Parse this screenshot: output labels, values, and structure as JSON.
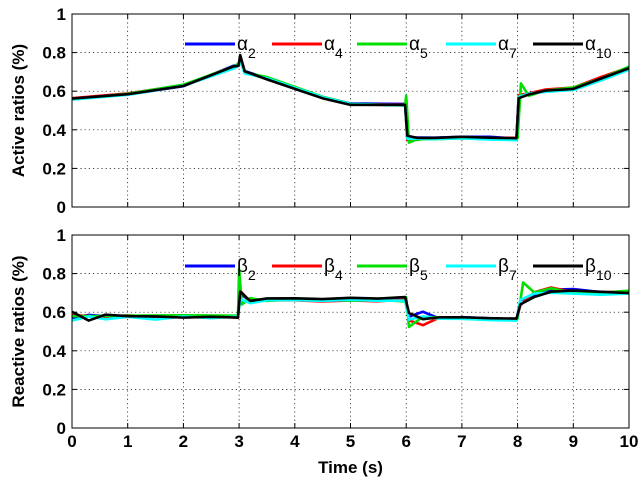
{
  "chart_data": [
    {
      "type": "line",
      "ylabel": "Active ratios (%)",
      "xlabel": "",
      "xlim": [
        0,
        10
      ],
      "ylim": [
        0,
        1
      ],
      "xticks": [
        "0",
        "1",
        "2",
        "3",
        "4",
        "5",
        "6",
        "7",
        "8",
        "9",
        "10"
      ],
      "yticks": [
        "0",
        "0.2",
        "0.4",
        "0.6",
        "0.8",
        "1"
      ],
      "grid": true,
      "legend": "top-right",
      "series": [
        {
          "name": "α",
          "sub": "2",
          "color": "#0000ff",
          "x": [
            0,
            1,
            2,
            2.9,
            2.99,
            3.02,
            3.1,
            3.5,
            4,
            4.5,
            5,
            5.98,
            6.02,
            6.2,
            6.5,
            7,
            7.5,
            7.98,
            8.02,
            8.2,
            8.5,
            9,
            9.5,
            10
          ],
          "y": [
            0.56,
            0.585,
            0.63,
            0.73,
            0.74,
            0.78,
            0.7,
            0.67,
            0.62,
            0.57,
            0.535,
            0.53,
            0.36,
            0.36,
            0.355,
            0.36,
            0.36,
            0.355,
            0.57,
            0.585,
            0.605,
            0.615,
            0.67,
            0.72
          ]
        },
        {
          "name": "α",
          "sub": "4",
          "color": "#ff0000",
          "x": [
            0,
            1,
            2,
            2.9,
            2.99,
            3.02,
            3.1,
            3.5,
            4,
            4.5,
            5,
            5.98,
            6.02,
            6.2,
            6.5,
            7,
            7.5,
            7.98,
            8.02,
            8.2,
            8.5,
            9,
            9.5,
            10
          ],
          "y": [
            0.56,
            0.585,
            0.63,
            0.725,
            0.735,
            0.77,
            0.7,
            0.67,
            0.62,
            0.57,
            0.535,
            0.53,
            0.35,
            0.355,
            0.355,
            0.36,
            0.355,
            0.355,
            0.58,
            0.59,
            0.605,
            0.615,
            0.67,
            0.72
          ]
        },
        {
          "name": "α",
          "sub": "5",
          "color": "#00e000",
          "x": [
            0,
            1,
            2,
            2.9,
            2.99,
            3.02,
            3.1,
            3.5,
            4,
            4.5,
            5,
            5.98,
            6.0,
            6.05,
            6.15,
            6.3,
            6.5,
            7,
            7.5,
            7.98,
            8.0,
            8.06,
            8.2,
            8.5,
            9,
            9.5,
            10
          ],
          "y": [
            0.56,
            0.585,
            0.63,
            0.73,
            0.74,
            0.76,
            0.7,
            0.67,
            0.62,
            0.57,
            0.535,
            0.53,
            0.58,
            0.33,
            0.35,
            0.355,
            0.355,
            0.36,
            0.355,
            0.355,
            0.36,
            0.64,
            0.58,
            0.605,
            0.62,
            0.665,
            0.725
          ]
        },
        {
          "name": "α",
          "sub": "7",
          "color": "#00ffff",
          "x": [
            0,
            1,
            2,
            2.9,
            2.99,
            3.02,
            3.1,
            3.5,
            4,
            4.5,
            5,
            5.98,
            6.02,
            6.2,
            6.5,
            7,
            7.5,
            7.98,
            8.02,
            8.2,
            8.5,
            9,
            9.5,
            10
          ],
          "y": [
            0.56,
            0.585,
            0.63,
            0.72,
            0.73,
            0.76,
            0.69,
            0.665,
            0.615,
            0.565,
            0.53,
            0.525,
            0.35,
            0.35,
            0.35,
            0.355,
            0.35,
            0.35,
            0.57,
            0.585,
            0.6,
            0.61,
            0.66,
            0.715
          ]
        },
        {
          "name": "α",
          "sub": "10",
          "color": "#000000",
          "x": [
            0,
            1,
            2,
            2.9,
            2.99,
            3.02,
            3.1,
            3.5,
            4,
            4.5,
            5,
            5.98,
            6.02,
            6.2,
            6.5,
            7,
            7.5,
            7.98,
            8.02,
            8.2,
            8.5,
            9,
            9.5,
            10
          ],
          "y": [
            0.56,
            0.585,
            0.63,
            0.725,
            0.735,
            0.79,
            0.7,
            0.665,
            0.615,
            0.565,
            0.53,
            0.525,
            0.37,
            0.36,
            0.355,
            0.36,
            0.355,
            0.355,
            0.56,
            0.58,
            0.6,
            0.61,
            0.665,
            0.72
          ]
        }
      ]
    },
    {
      "type": "line",
      "ylabel": "Reactive ratios (%)",
      "xlabel": "Time (s)",
      "xlim": [
        0,
        10
      ],
      "ylim": [
        0,
        1
      ],
      "xticks": [
        "0",
        "1",
        "2",
        "3",
        "4",
        "5",
        "6",
        "7",
        "8",
        "9",
        "10"
      ],
      "yticks": [
        "0",
        "0.2",
        "0.4",
        "0.6",
        "0.8",
        "1"
      ],
      "grid": true,
      "legend": "top-right",
      "series": [
        {
          "name": "β",
          "sub": "2",
          "color": "#0000ff",
          "x": [
            0,
            0.3,
            0.6,
            1,
            1.5,
            2,
            2.5,
            2.98,
            3.02,
            3.2,
            3.5,
            4,
            4.5,
            5,
            5.5,
            5.98,
            6.05,
            6.3,
            6.6,
            7,
            7.5,
            7.98,
            8.05,
            8.3,
            8.6,
            9,
            9.5,
            10
          ],
          "y": [
            0.57,
            0.59,
            0.58,
            0.585,
            0.58,
            0.585,
            0.58,
            0.58,
            0.7,
            0.66,
            0.67,
            0.67,
            0.665,
            0.67,
            0.665,
            0.67,
            0.58,
            0.6,
            0.57,
            0.57,
            0.565,
            0.56,
            0.66,
            0.69,
            0.72,
            0.72,
            0.705,
            0.7
          ]
        },
        {
          "name": "β",
          "sub": "4",
          "color": "#ff0000",
          "x": [
            0,
            0.3,
            0.6,
            1,
            1.5,
            2,
            2.5,
            2.98,
            3.02,
            3.2,
            3.5,
            4,
            4.5,
            5,
            5.5,
            5.98,
            6.05,
            6.3,
            6.6,
            7,
            7.5,
            7.98,
            8.05,
            8.3,
            8.6,
            9,
            9.5,
            10
          ],
          "y": [
            0.58,
            0.58,
            0.575,
            0.58,
            0.575,
            0.58,
            0.58,
            0.575,
            0.71,
            0.65,
            0.665,
            0.665,
            0.66,
            0.665,
            0.66,
            0.665,
            0.56,
            0.53,
            0.57,
            0.57,
            0.56,
            0.56,
            0.64,
            0.7,
            0.73,
            0.7,
            0.7,
            0.705
          ]
        },
        {
          "name": "β",
          "sub": "5",
          "color": "#00e000",
          "x": [
            0,
            1,
            2,
            2.98,
            3.0,
            3.05,
            3.2,
            3.5,
            4,
            4.5,
            5,
            5.5,
            5.98,
            6.0,
            6.05,
            6.3,
            6.6,
            7,
            7.5,
            7.98,
            8.0,
            8.1,
            8.3,
            8.6,
            9,
            9.5,
            10
          ],
          "y": [
            0.58,
            0.58,
            0.58,
            0.58,
            0.82,
            0.64,
            0.67,
            0.655,
            0.665,
            0.665,
            0.66,
            0.665,
            0.66,
            0.68,
            0.52,
            0.58,
            0.57,
            0.57,
            0.565,
            0.565,
            0.57,
            0.75,
            0.7,
            0.72,
            0.7,
            0.7,
            0.71
          ]
        },
        {
          "name": "β",
          "sub": "7",
          "color": "#00ffff",
          "x": [
            0,
            0.3,
            0.6,
            1,
            1.5,
            2,
            2.5,
            2.98,
            3.02,
            3.2,
            3.5,
            4,
            4.5,
            5,
            5.5,
            5.98,
            6.05,
            6.3,
            6.6,
            7,
            7.5,
            7.98,
            8.05,
            8.3,
            8.6,
            9,
            9.5,
            10
          ],
          "y": [
            0.56,
            0.58,
            0.56,
            0.58,
            0.565,
            0.58,
            0.57,
            0.575,
            0.67,
            0.65,
            0.66,
            0.66,
            0.655,
            0.66,
            0.655,
            0.66,
            0.56,
            0.58,
            0.57,
            0.565,
            0.56,
            0.56,
            0.66,
            0.7,
            0.7,
            0.7,
            0.695,
            0.7
          ]
        },
        {
          "name": "β",
          "sub": "10",
          "color": "#000000",
          "x": [
            0,
            0.3,
            0.6,
            1,
            1.5,
            2,
            2.5,
            2.98,
            3.02,
            3.2,
            3.5,
            4,
            4.5,
            5,
            5.5,
            5.98,
            6.05,
            6.3,
            6.6,
            7,
            7.5,
            7.98,
            8.05,
            8.3,
            8.6,
            9,
            9.5,
            10
          ],
          "y": [
            0.6,
            0.56,
            0.59,
            0.58,
            0.58,
            0.575,
            0.58,
            0.575,
            0.71,
            0.66,
            0.675,
            0.675,
            0.67,
            0.675,
            0.67,
            0.675,
            0.6,
            0.56,
            0.575,
            0.57,
            0.565,
            0.565,
            0.64,
            0.68,
            0.71,
            0.71,
            0.705,
            0.7
          ]
        }
      ]
    }
  ]
}
